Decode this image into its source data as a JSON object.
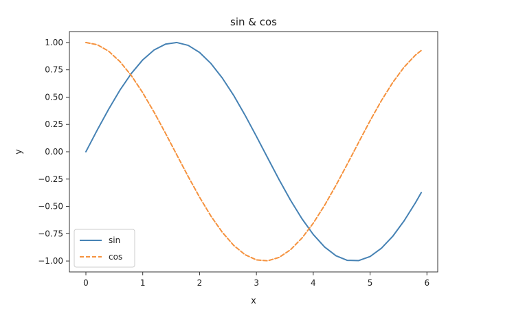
{
  "chart_data": {
    "type": "line",
    "title": "sin & cos",
    "xlabel": "x",
    "ylabel": "y",
    "xlim": [
      -0.29,
      6.19
    ],
    "ylim": [
      -1.1,
      1.1
    ],
    "xticks": [
      0,
      1,
      2,
      3,
      4,
      5,
      6
    ],
    "xtick_labels": [
      "0",
      "1",
      "2",
      "3",
      "4",
      "5",
      "6"
    ],
    "yticks": [
      1.0,
      0.75,
      0.5,
      0.25,
      0.0,
      -0.25,
      -0.5,
      -0.75,
      -1.0
    ],
    "ytick_labels": [
      "1.00",
      "0.75",
      "0.50",
      "0.25",
      "0.00",
      "−0.25",
      "−0.50",
      "−0.75",
      "−1.00"
    ],
    "grid": false,
    "legend_placement": "lower-left",
    "x": [
      0.0,
      0.2,
      0.4,
      0.6,
      0.8,
      1.0,
      1.2,
      1.4,
      1.6,
      1.8,
      2.0,
      2.2,
      2.4,
      2.6,
      2.8,
      3.0,
      3.2,
      3.4,
      3.6,
      3.8,
      4.0,
      4.2,
      4.4,
      4.6,
      4.8,
      5.0,
      5.2,
      5.4,
      5.6,
      5.8,
      5.9
    ],
    "series": [
      {
        "name": "sin",
        "color": "#4682b4",
        "style": "solid",
        "values": [
          0.0,
          0.199,
          0.389,
          0.565,
          0.717,
          0.841,
          0.932,
          0.985,
          1.0,
          0.974,
          0.909,
          0.808,
          0.675,
          0.516,
          0.335,
          0.141,
          -0.058,
          -0.256,
          -0.443,
          -0.612,
          -0.757,
          -0.872,
          -0.952,
          -0.994,
          -0.996,
          -0.959,
          -0.883,
          -0.773,
          -0.631,
          -0.465,
          -0.374
        ]
      },
      {
        "name": "cos",
        "color": "#f5923e",
        "style": "dashed",
        "values": [
          1.0,
          0.98,
          0.921,
          0.825,
          0.697,
          0.54,
          0.362,
          0.17,
          -0.029,
          -0.227,
          -0.416,
          -0.589,
          -0.737,
          -0.857,
          -0.942,
          -0.99,
          -0.998,
          -0.967,
          -0.897,
          -0.791,
          -0.654,
          -0.49,
          -0.307,
          -0.112,
          0.087,
          0.284,
          0.469,
          0.635,
          0.776,
          0.886,
          0.927
        ]
      }
    ]
  }
}
